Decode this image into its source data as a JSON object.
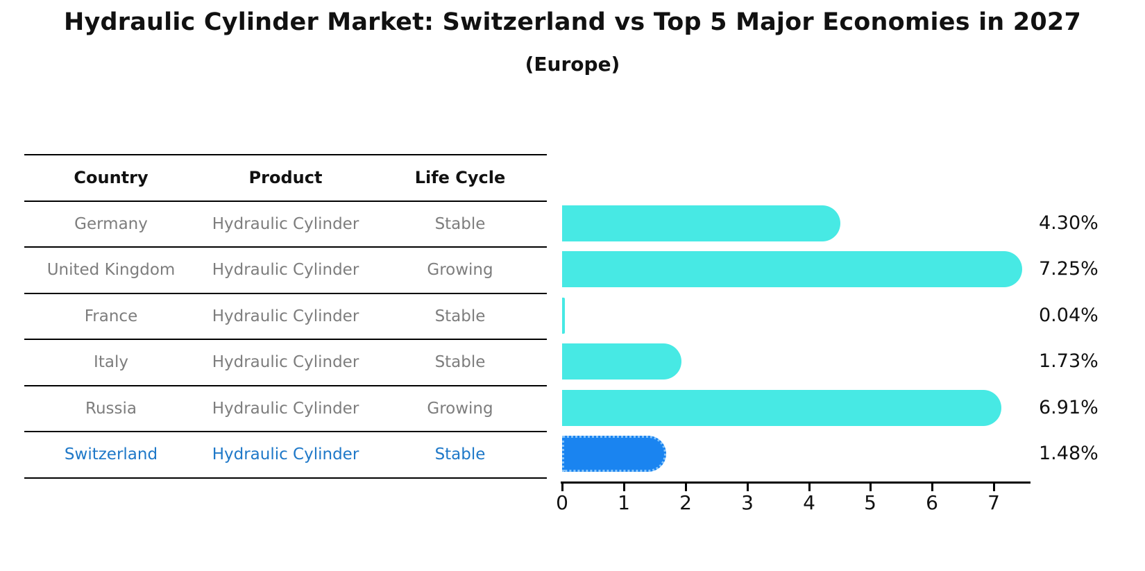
{
  "title": "Hydraulic Cylinder Market: Switzerland vs Top 5 Major Economies in 2027",
  "subtitle": "(Europe)",
  "table": {
    "headers": [
      "Country",
      "Product",
      "Life Cycle"
    ],
    "rows": [
      {
        "country": "Germany",
        "product": "Hydraulic Cylinder",
        "life_cycle": "Stable",
        "highlight": false
      },
      {
        "country": "United Kingdom",
        "product": "Hydraulic Cylinder",
        "life_cycle": "Growing",
        "highlight": false
      },
      {
        "country": "France",
        "product": "Hydraulic Cylinder",
        "life_cycle": "Stable",
        "highlight": false
      },
      {
        "country": "Italy",
        "product": "Hydraulic Cylinder",
        "life_cycle": "Stable",
        "highlight": false
      },
      {
        "country": "Russia",
        "product": "Hydraulic Cylinder",
        "life_cycle": "Growing",
        "highlight": false
      },
      {
        "country": "Switzerland",
        "product": "Hydraulic Cylinder",
        "life_cycle": "Stable",
        "highlight": true
      }
    ]
  },
  "chart_data": {
    "type": "bar",
    "orientation": "horizontal",
    "title": "Hydraulic Cylinder Market: Switzerland vs Top 5 Major Economies in 2027",
    "subtitle": "(Europe)",
    "categories": [
      "Germany",
      "United Kingdom",
      "France",
      "Italy",
      "Russia",
      "Switzerland"
    ],
    "values": [
      4.3,
      7.25,
      0.04,
      1.73,
      6.91,
      1.48
    ],
    "value_labels": [
      "4.30%",
      "7.25%",
      "0.04%",
      "1.73%",
      "6.91%",
      "1.48%"
    ],
    "xticks": [
      "0",
      "1",
      "2",
      "3",
      "4",
      "5",
      "6",
      "7"
    ],
    "xlim": [
      0,
      7.6
    ],
    "grid": false,
    "legend": false,
    "bar_color": "#47e9e4",
    "highlight_index": 5,
    "highlight_bar_color": "#1a84f0",
    "highlight_text_color": "#1e78c8"
  }
}
